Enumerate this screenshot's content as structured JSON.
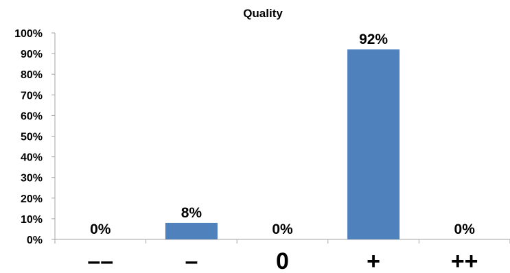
{
  "chart_data": {
    "type": "bar",
    "title": "Quality",
    "xlabel": "",
    "ylabel": "",
    "categories": [
      "––",
      "–",
      "0",
      "+",
      "++"
    ],
    "values": [
      0,
      8,
      0,
      92,
      0
    ],
    "data_labels": [
      "0%",
      "8%",
      "0%",
      "92%",
      "0%"
    ],
    "yticks": [
      "0%",
      "10%",
      "20%",
      "30%",
      "40%",
      "50%",
      "60%",
      "70%",
      "80%",
      "90%",
      "100%"
    ],
    "ylim": [
      0,
      100
    ],
    "grid": false,
    "legend": "none",
    "bar_color": "#4F81BD",
    "axis_color": "#A6A6A6"
  }
}
